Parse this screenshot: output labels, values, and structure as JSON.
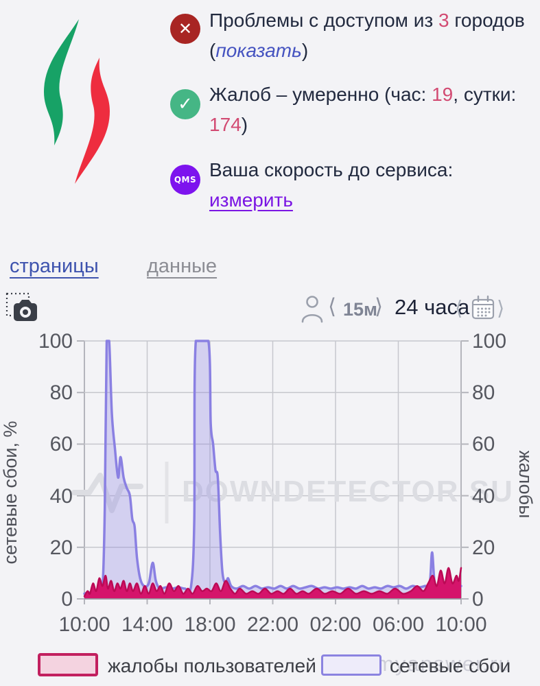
{
  "colors": {
    "page_bg": "#f3f3f6",
    "logo_green": "#17a266",
    "logo_red": "#ee2d3f",
    "error_red": "#a82523",
    "ok_green": "#45b685",
    "qms_purple": "#7d13ee",
    "tab_active_blue": "#3e53ae",
    "link_blue": "#4553c0",
    "link_purple": "#7a15e3",
    "number_pink": "#d24a72",
    "series_purple": "#8a80e2",
    "series_pink_fill": "#d5146b"
  },
  "status": {
    "item1": {
      "t1": "Проблемы с доступом из ",
      "n1": "3",
      "t2": " городов (",
      "link": "показать",
      "t3": ")"
    },
    "item2": {
      "t1": "Жалоб – умеренно (час: ",
      "n1": "19",
      "t2": ", сутки: ",
      "n2": "174",
      "t3": ")"
    },
    "item3": {
      "t1": "Ваша скорость до сервиса: ",
      "link": "измерить"
    },
    "icons": {
      "error": "✕",
      "ok": "✓",
      "qms": "QMS"
    }
  },
  "tabs": {
    "pages": "страницы",
    "data": "данные"
  },
  "controls": {
    "bracket_left": "⟨",
    "bracket_right": "⟩",
    "interval": "15м",
    "range": "24 часа",
    "cal_prev": "⟨",
    "cal_next": "⟩"
  },
  "chart_data": {
    "type": "area",
    "x_hours": 24,
    "ylim": [
      0,
      100
    ],
    "grid": true,
    "xticks": [
      "10:00",
      "14:00",
      "18:00",
      "22:00",
      "02:00",
      "06:00",
      "10:00"
    ],
    "yticks": [
      "100",
      "80",
      "60",
      "40",
      "20",
      "0"
    ],
    "ylabel_left": "сетевые сбои, %",
    "ylabel_right": "жалобы",
    "watermark": "DOWNDETECTOR SU",
    "series": [
      {
        "name": "сетевые сбои",
        "color": "#8a80e2",
        "fill": "rgba(138,128,226,0.30)",
        "stroke_width": 3.5,
        "points": [
          [
            0,
            2
          ],
          [
            0.3,
            2.5
          ],
          [
            0.6,
            2
          ],
          [
            0.9,
            3
          ],
          [
            1.15,
            4
          ],
          [
            1.3,
            35
          ],
          [
            1.42,
            100
          ],
          [
            1.58,
            100
          ],
          [
            1.75,
            72
          ],
          [
            1.95,
            58
          ],
          [
            2.15,
            47
          ],
          [
            2.3,
            55
          ],
          [
            2.5,
            47
          ],
          [
            2.7,
            43
          ],
          [
            2.9,
            40
          ],
          [
            3.05,
            31
          ],
          [
            3.2,
            28
          ],
          [
            3.35,
            16
          ],
          [
            3.55,
            8
          ],
          [
            3.8,
            5
          ],
          [
            4.1,
            6
          ],
          [
            4.35,
            14
          ],
          [
            4.55,
            7
          ],
          [
            4.8,
            4
          ],
          [
            5.2,
            4.5
          ],
          [
            5.6,
            4
          ],
          [
            6,
            4.5
          ],
          [
            6.4,
            4
          ],
          [
            6.8,
            5
          ],
          [
            7,
            30
          ],
          [
            7.1,
            100
          ],
          [
            7.9,
            100
          ],
          [
            8.05,
            68
          ],
          [
            8.2,
            60
          ],
          [
            8.35,
            50
          ],
          [
            8.5,
            47
          ],
          [
            8.65,
            25
          ],
          [
            8.8,
            10
          ],
          [
            9,
            6
          ],
          [
            9.15,
            8
          ],
          [
            9.35,
            5
          ],
          [
            9.7,
            4
          ],
          [
            10.1,
            5
          ],
          [
            10.5,
            4
          ],
          [
            10.9,
            5
          ],
          [
            11.3,
            4
          ],
          [
            11.7,
            4.5
          ],
          [
            12.1,
            4
          ],
          [
            12.5,
            5
          ],
          [
            12.9,
            4
          ],
          [
            13.3,
            5
          ],
          [
            13.7,
            4
          ],
          [
            14.1,
            4.5
          ],
          [
            14.5,
            5
          ],
          [
            14.9,
            4
          ],
          [
            15.3,
            4.5
          ],
          [
            15.7,
            4
          ],
          [
            16.1,
            4.5
          ],
          [
            16.5,
            4
          ],
          [
            16.9,
            4.5
          ],
          [
            17.3,
            4
          ],
          [
            17.7,
            5
          ],
          [
            18.1,
            4
          ],
          [
            18.5,
            4.5
          ],
          [
            18.9,
            4
          ],
          [
            19.3,
            5
          ],
          [
            19.7,
            4.5
          ],
          [
            20.1,
            5
          ],
          [
            20.5,
            4
          ],
          [
            20.9,
            5
          ],
          [
            21.3,
            4.5
          ],
          [
            21.7,
            5
          ],
          [
            22,
            6
          ],
          [
            22.15,
            18
          ],
          [
            22.3,
            7
          ],
          [
            22.5,
            4
          ],
          [
            22.8,
            5
          ],
          [
            23.1,
            4
          ],
          [
            23.4,
            5
          ],
          [
            23.7,
            5
          ],
          [
            24,
            5
          ]
        ]
      },
      {
        "name": "жалобы пользователей",
        "color": "#bb0a55",
        "fill": "#d5146b",
        "stroke_width": 2.5,
        "points": [
          [
            0,
            1
          ],
          [
            0.2,
            3
          ],
          [
            0.35,
            2
          ],
          [
            0.55,
            6
          ],
          [
            0.75,
            3
          ],
          [
            0.95,
            8
          ],
          [
            1.15,
            5
          ],
          [
            1.35,
            9
          ],
          [
            1.5,
            4
          ],
          [
            1.7,
            7
          ],
          [
            1.9,
            3
          ],
          [
            2.1,
            6
          ],
          [
            2.3,
            4
          ],
          [
            2.5,
            7
          ],
          [
            2.7,
            3
          ],
          [
            2.9,
            6
          ],
          [
            3.1,
            3
          ],
          [
            3.35,
            6
          ],
          [
            3.6,
            2
          ],
          [
            3.85,
            5
          ],
          [
            4.1,
            2
          ],
          [
            4.35,
            6
          ],
          [
            4.6,
            3
          ],
          [
            4.85,
            5
          ],
          [
            5.1,
            2
          ],
          [
            5.4,
            6
          ],
          [
            5.7,
            3
          ],
          [
            6,
            5
          ],
          [
            6.3,
            2
          ],
          [
            6.6,
            4
          ],
          [
            6.9,
            2
          ],
          [
            7.2,
            5
          ],
          [
            7.5,
            3
          ],
          [
            7.8,
            4
          ],
          [
            8.1,
            3
          ],
          [
            8.4,
            6
          ],
          [
            8.7,
            3
          ],
          [
            9,
            7
          ],
          [
            9.3,
            4
          ],
          [
            9.6,
            2
          ],
          [
            9.9,
            4
          ],
          [
            10.3,
            2
          ],
          [
            10.7,
            3
          ],
          [
            11.1,
            2
          ],
          [
            11.5,
            4
          ],
          [
            11.9,
            2
          ],
          [
            12.3,
            3
          ],
          [
            12.7,
            2
          ],
          [
            13.1,
            4
          ],
          [
            13.5,
            2
          ],
          [
            13.9,
            3
          ],
          [
            14.3,
            2
          ],
          [
            14.8,
            4
          ],
          [
            15.3,
            2
          ],
          [
            15.8,
            3
          ],
          [
            16.3,
            2
          ],
          [
            16.8,
            4
          ],
          [
            17.3,
            2
          ],
          [
            17.8,
            3
          ],
          [
            18.3,
            2
          ],
          [
            18.8,
            3
          ],
          [
            19.3,
            2
          ],
          [
            19.8,
            4
          ],
          [
            20.3,
            2
          ],
          [
            20.8,
            3
          ],
          [
            21.2,
            5
          ],
          [
            21.6,
            3
          ],
          [
            21.9,
            6
          ],
          [
            22.2,
            9
          ],
          [
            22.45,
            5
          ],
          [
            22.7,
            11
          ],
          [
            22.95,
            6
          ],
          [
            23.2,
            12
          ],
          [
            23.45,
            6
          ],
          [
            23.7,
            9
          ],
          [
            23.85,
            7
          ],
          [
            24,
            12
          ]
        ]
      }
    ],
    "legend": [
      {
        "label": "жалобы пользователей"
      },
      {
        "label": "сетевые сбои"
      }
    ]
  },
  "watermark_bottom": "myanswer.ru"
}
